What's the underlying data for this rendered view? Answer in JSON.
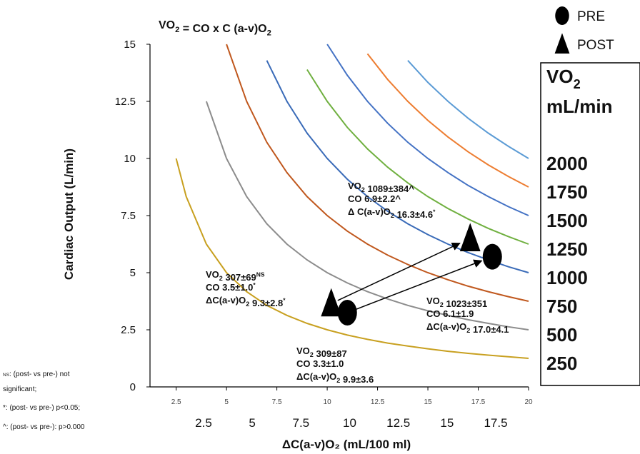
{
  "chart_data": {
    "type": "line",
    "title": [
      "VO",
      {
        "sub": "2"
      },
      " = CO x C (a-v)O",
      {
        "sub": "2"
      }
    ],
    "x_label": "ΔC(a-v)O₂ (mL/100 ml)",
    "y_label": "Cardiac Output (L/min)",
    "xlim": [
      1.2,
      20
    ],
    "ylim": [
      0,
      15
    ],
    "xticks": [
      2.5,
      5,
      7.5,
      10,
      12.5,
      15,
      17.5,
      20
    ],
    "x_labels_lower": [
      "2.5",
      "5",
      "7.5",
      "10",
      "12.5",
      "15",
      "17.5"
    ],
    "yticks": [
      0,
      2.5,
      5,
      7.5,
      10,
      12.5,
      15
    ],
    "box_header": [
      [
        "VO",
        {
          "sub": "2"
        }
      ],
      [
        "mL/min"
      ]
    ],
    "x": [
      2.5,
      3,
      4,
      5,
      6,
      7,
      8,
      9,
      10,
      11,
      12,
      13,
      14,
      15,
      16,
      17,
      18,
      19,
      20
    ],
    "series": [
      {
        "name": "250",
        "color": "#c8a020",
        "values": [
          10,
          8.33,
          6.25,
          5,
          4.17,
          3.57,
          3.13,
          2.78,
          2.5,
          2.27,
          2.08,
          1.92,
          1.79,
          1.67,
          1.56,
          1.47,
          1.39,
          1.32,
          1.25
        ]
      },
      {
        "name": "500",
        "color": "#8c8c8c",
        "values": [
          null,
          null,
          12.5,
          10,
          8.33,
          7.14,
          6.25,
          5.56,
          5,
          4.55,
          4.17,
          3.85,
          3.57,
          3.33,
          3.13,
          2.94,
          2.78,
          2.63,
          2.5
        ]
      },
      {
        "name": "750",
        "color": "#c0581e",
        "values": [
          null,
          null,
          null,
          15,
          12.5,
          10.71,
          9.38,
          8.33,
          7.5,
          6.82,
          6.25,
          5.77,
          5.36,
          5,
          4.69,
          4.41,
          4.17,
          3.95,
          3.75
        ]
      },
      {
        "name": "1000",
        "color": "#3a6bb8",
        "values": [
          null,
          null,
          null,
          null,
          null,
          14.29,
          12.5,
          11.11,
          10,
          9.09,
          8.33,
          7.69,
          7.14,
          6.67,
          6.25,
          5.88,
          5.56,
          5.26,
          5
        ]
      },
      {
        "name": "1250",
        "color": "#70b040",
        "values": [
          null,
          null,
          null,
          null,
          null,
          null,
          null,
          13.89,
          12.5,
          11.36,
          10.42,
          9.62,
          8.93,
          8.33,
          7.81,
          7.35,
          6.94,
          6.58,
          6.25
        ]
      },
      {
        "name": "1500",
        "color": "#4472c4",
        "values": [
          null,
          null,
          null,
          null,
          null,
          null,
          null,
          null,
          15,
          13.64,
          12.5,
          11.54,
          10.71,
          10,
          9.38,
          8.82,
          8.33,
          7.89,
          7.5
        ]
      },
      {
        "name": "1750",
        "color": "#ed7d31",
        "values": [
          null,
          null,
          null,
          null,
          null,
          null,
          null,
          null,
          null,
          null,
          14.58,
          13.46,
          12.5,
          11.67,
          10.94,
          10.29,
          9.72,
          9.21,
          8.75
        ]
      },
      {
        "name": "2000",
        "color": "#5b9bd5",
        "values": [
          null,
          null,
          null,
          null,
          null,
          null,
          null,
          null,
          null,
          null,
          null,
          null,
          14.29,
          13.33,
          12.5,
          11.76,
          11.11,
          10.53,
          10
        ]
      }
    ],
    "markers": [
      {
        "name": "PRE",
        "shape": "circle",
        "x": [
          11,
          18.2
        ],
        "values": [
          3.25,
          5.7
        ]
      },
      {
        "name": "POST",
        "shape": "triangle",
        "x": [
          10.2,
          17.1
        ],
        "values": [
          3.65,
          6.5
        ]
      }
    ],
    "annotations": [
      {
        "lines": [
          [
            "VO",
            {
              "sub": "2"
            },
            " 307±69",
            {
              "sup": "NS"
            }
          ],
          [
            "CO 3.5±1.0",
            {
              "sup": "*"
            }
          ],
          [
            "ΔC(a-v)O",
            {
              "sub": "2"
            },
            " 9.3±2.8",
            {
              "sup": "*"
            }
          ]
        ]
      },
      {
        "lines": [
          [
            "VO",
            {
              "sub": "2"
            },
            " 1089±384^"
          ],
          [
            "CO 6.9±2.2^"
          ],
          [
            "Δ C(a-v)O",
            {
              "sub": "2"
            },
            " 16.3±4.6",
            {
              "sup": "*"
            }
          ]
        ]
      },
      {
        "lines": [
          [
            "VO",
            {
              "sub": "2"
            },
            " 1023±351"
          ],
          [
            "CO 6.1±1.9"
          ],
          [
            "ΔC(a-v)O",
            {
              "sub": "2"
            },
            " 17.0±4.1"
          ]
        ]
      },
      {
        "lines": [
          [
            "VO",
            {
              "sub": "2"
            },
            " 309±87"
          ],
          [
            "CO 3.3±1.0"
          ],
          [
            "ΔC(a-v)O",
            {
              "sub": "2"
            },
            " 9.9±3.6"
          ]
        ]
      }
    ],
    "footnotes": [
      [
        {
          "sup": "NS"
        },
        ": (post- vs pre-) not"
      ],
      [
        "significant;"
      ],
      [
        "*: (post- vs pre-) p<0.05;"
      ],
      [
        "^: (post- vs pre-): p>0.000"
      ]
    ]
  }
}
